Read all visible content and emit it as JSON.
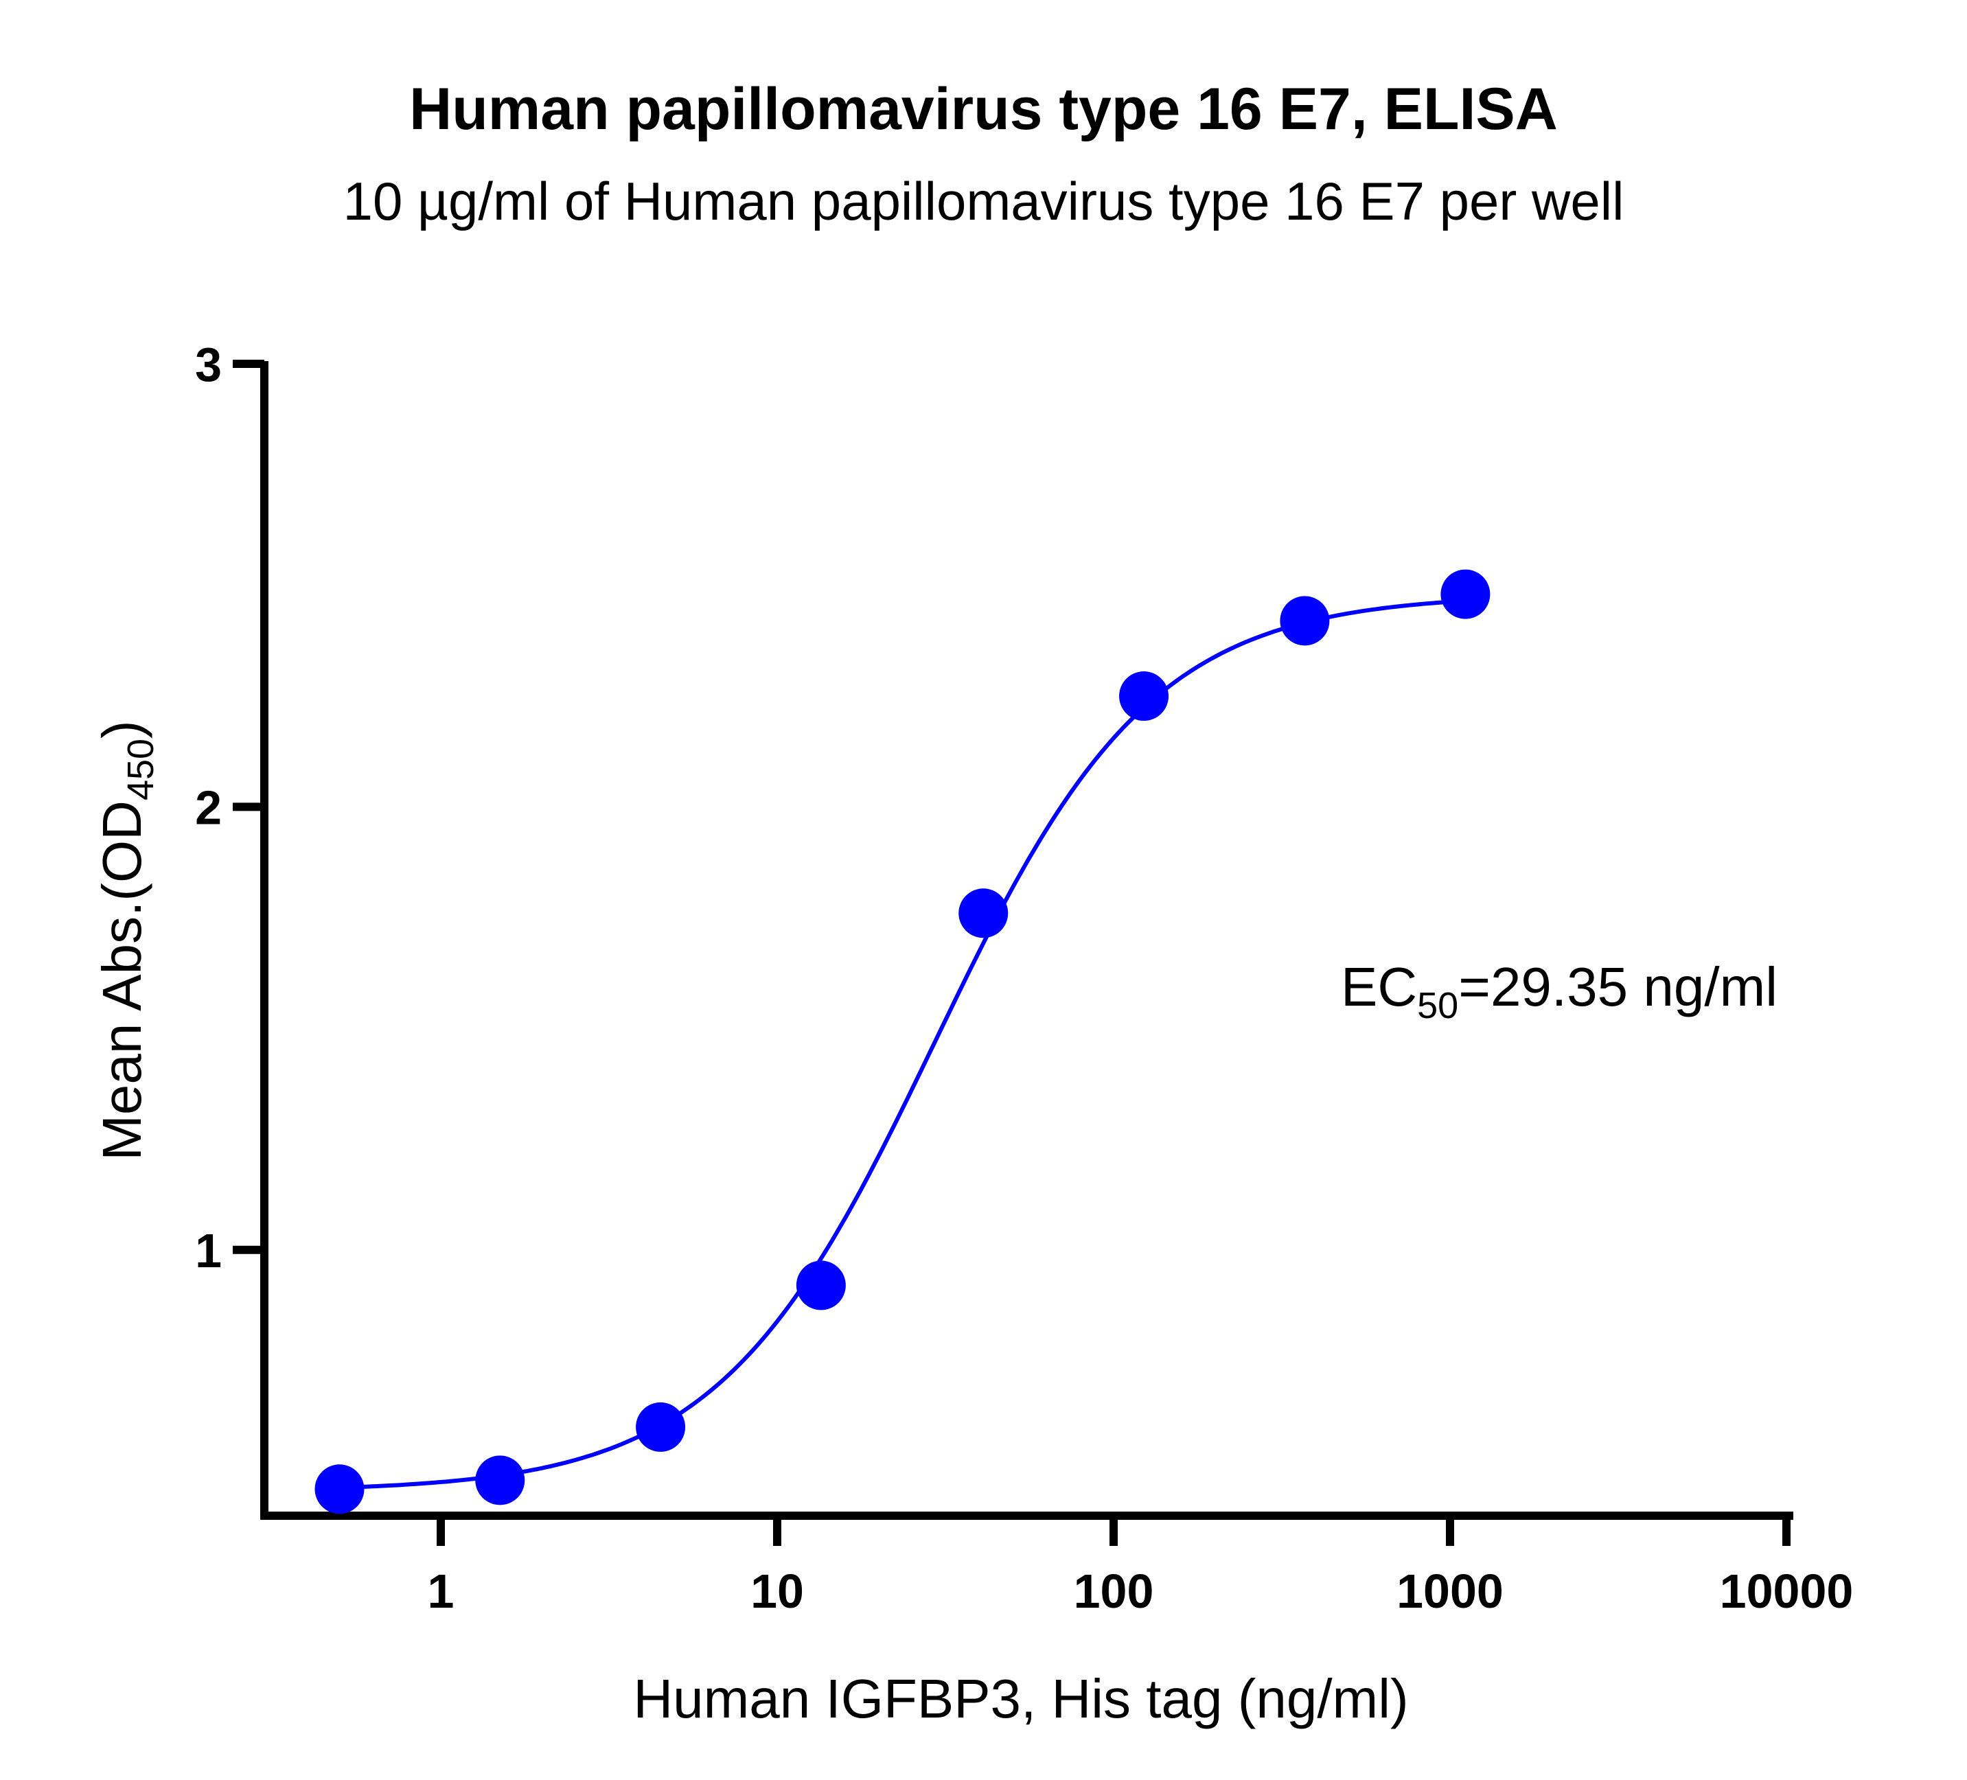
{
  "chart_data": {
    "type": "scatter",
    "title": "Human papillomavirus type 16 E7, ELISA",
    "subtitle": "10 µg/ml of Human papillomavirus type 16 E7 per well",
    "xlabel": "Human IGFBP3, His tag (ng/ml)",
    "ylabel": {
      "main": "Mean Abs.(OD",
      "sub": "450",
      "end": ")"
    },
    "x_scale": "log",
    "xlim": [
      0.3,
      10000
    ],
    "ylim": [
      0.4,
      3
    ],
    "x_ticks": [
      1,
      10,
      100,
      1000,
      10000
    ],
    "x_tick_labels": [
      "1",
      "10",
      "100",
      "1000",
      "10000"
    ],
    "y_ticks": [
      1,
      2,
      3
    ],
    "y_tick_labels": [
      "1",
      "2",
      "3"
    ],
    "series": [
      {
        "color": "#0000ff",
        "x": [
          0.5,
          1.5,
          4.5,
          13.5,
          41,
          123,
          370,
          1111
        ],
        "y": [
          0.46,
          0.48,
          0.6,
          0.92,
          1.76,
          2.25,
          2.42,
          2.48
        ]
      }
    ],
    "fit": {
      "bottom": 0.455,
      "top": 2.48,
      "ec50": 29.35,
      "hill": 1.35
    },
    "annotation": {
      "prefix": "EC",
      "sub": "50",
      "text": "=29.35 ng/ml"
    }
  }
}
